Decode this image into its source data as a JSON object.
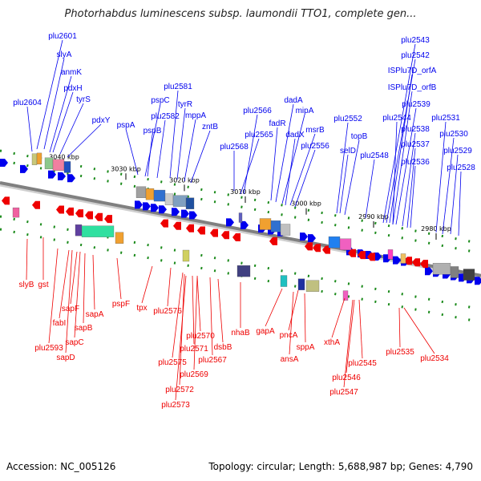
{
  "title": "Photorhabdus luminescens subsp. laumondii TTO1, complete gen...",
  "footer": {
    "accession": "Accession: NC_005126",
    "summary": "Topology: circular; Length: 5,688,987 bp; Genes: 4,790"
  },
  "colors": {
    "forward": "#0000ee",
    "reverse": "#ee0000",
    "backbone": "#808080"
  },
  "ticks": [
    "3040 kbp",
    "3030 kbp",
    "3020 kbp",
    "3010 kbp",
    "3000 kbp",
    "2990 kbp",
    "2980 kbp"
  ],
  "top_labels": [
    "plu2601",
    "slyA",
    "anmK",
    "plu2604",
    "pdxH",
    "tyrS",
    "pdxY",
    "pspA",
    "pspC",
    "plu2581",
    "pspB",
    "plu2582",
    "tyrR",
    "mppA",
    "zntB",
    "plu2566",
    "plu2568",
    "plu2565",
    "fadR",
    "dadA",
    "mipA",
    "dadX",
    "msrB",
    "plu2556",
    "plu2552",
    "topB",
    "selD",
    "plu2548",
    "plu2543",
    "plu2542",
    "ISPlu7D_orfA",
    "ISPlu7D_orfB",
    "plu2539",
    "plu2544",
    "plu2538",
    "plu2537",
    "plu2536",
    "plu2531",
    "plu2530",
    "plu2529",
    "plu2528"
  ],
  "bottom_labels": [
    "slyB",
    "gst",
    "plu2593",
    "fabI",
    "sapF",
    "sapB",
    "sapA",
    "sapC",
    "sapD",
    "pspF",
    "tpx",
    "plu2576",
    "plu2575",
    "plu2570",
    "plu2571",
    "plu2572",
    "plu2569",
    "plu2573",
    "plu2567",
    "dsbB",
    "nhaB",
    "gapA",
    "pncA",
    "ansA",
    "sppA",
    "xthA",
    "plu2545",
    "plu2546",
    "plu2547",
    "plu2535",
    "plu2534"
  ]
}
